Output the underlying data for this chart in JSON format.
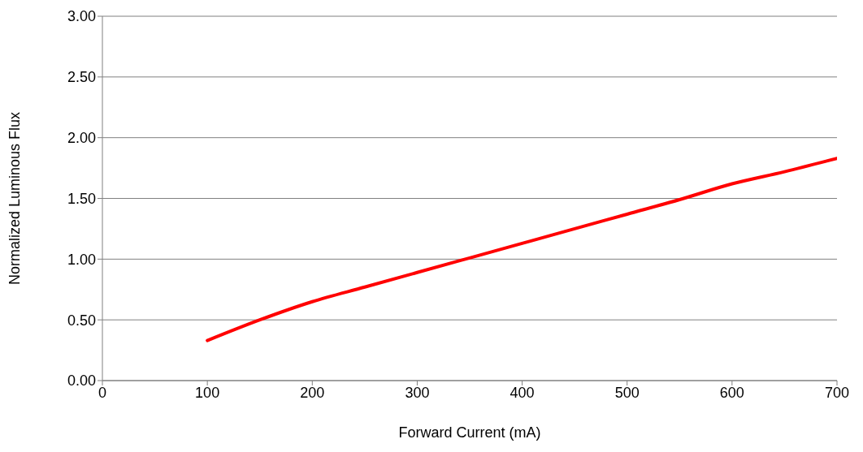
{
  "chart_data": {
    "type": "line",
    "xlabel": "Forward Current (mA)",
    "ylabel": "Normalized Luminous Flux",
    "x": [
      100,
      150,
      200,
      250,
      300,
      350,
      400,
      450,
      500,
      550,
      600,
      650,
      700
    ],
    "series": [
      {
        "color": "#ff0000",
        "values": [
          0.33,
          0.5,
          0.65,
          0.77,
          0.89,
          1.01,
          1.13,
          1.25,
          1.37,
          1.49,
          1.62,
          1.72,
          1.83
        ]
      }
    ],
    "xlim": [
      0,
      700
    ],
    "xticks": [
      0,
      100,
      200,
      300,
      400,
      500,
      600,
      700
    ],
    "ylim": [
      0,
      3
    ],
    "yticks": [
      {
        "value": 0,
        "label": "0.00"
      },
      {
        "value": 0.5,
        "label": "0.50"
      },
      {
        "value": 1,
        "label": "1.00"
      },
      {
        "value": 1.5,
        "label": "1.50"
      },
      {
        "value": 2,
        "label": "2.00"
      },
      {
        "value": 2.5,
        "label": "2.50"
      },
      {
        "value": 3,
        "label": "3.00"
      }
    ],
    "grid": "y",
    "legend": false,
    "marker": "none",
    "line_style": "solid"
  }
}
